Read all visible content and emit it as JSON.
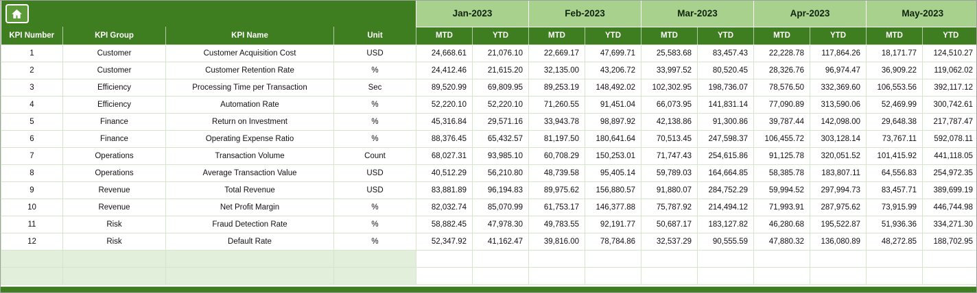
{
  "header": {
    "months": [
      "Jan-2023",
      "Feb-2023",
      "Mar-2023",
      "Apr-2023",
      "May-2023"
    ],
    "left_columns": [
      "KPI Number",
      "KPI Group",
      "KPI Name",
      "Unit"
    ],
    "sub_columns": [
      "MTD",
      "YTD"
    ]
  },
  "table": {
    "rows": [
      {
        "kpi_number": "1",
        "kpi_group": "Customer",
        "kpi_name": "Customer Acquisition Cost",
        "unit": "USD",
        "values": [
          "24,668.61",
          "21,076.10",
          "22,669.17",
          "47,699.71",
          "25,583.68",
          "83,457.43",
          "22,228.78",
          "117,864.26",
          "18,171.77",
          "124,510.27"
        ]
      },
      {
        "kpi_number": "2",
        "kpi_group": "Customer",
        "kpi_name": "Customer Retention Rate",
        "unit": "%",
        "values": [
          "24,412.46",
          "21,615.20",
          "32,135.00",
          "43,206.72",
          "33,997.52",
          "80,520.45",
          "28,326.76",
          "96,974.47",
          "36,909.22",
          "119,062.02"
        ]
      },
      {
        "kpi_number": "3",
        "kpi_group": "Efficiency",
        "kpi_name": "Processing Time per Transaction",
        "unit": "Sec",
        "values": [
          "89,520.99",
          "69,809.95",
          "89,253.19",
          "148,492.02",
          "102,302.95",
          "198,736.07",
          "78,576.50",
          "332,369.60",
          "106,553.56",
          "392,117.12"
        ]
      },
      {
        "kpi_number": "4",
        "kpi_group": "Efficiency",
        "kpi_name": "Automation Rate",
        "unit": "%",
        "values": [
          "52,220.10",
          "52,220.10",
          "71,260.55",
          "91,451.04",
          "66,073.95",
          "141,831.14",
          "77,090.89",
          "313,590.06",
          "52,469.99",
          "300,742.61"
        ]
      },
      {
        "kpi_number": "5",
        "kpi_group": "Finance",
        "kpi_name": "Return on Investment",
        "unit": "%",
        "values": [
          "45,316.84",
          "29,571.16",
          "33,943.78",
          "98,897.92",
          "42,138.86",
          "91,300.86",
          "39,787.44",
          "142,098.00",
          "29,648.38",
          "217,787.47"
        ]
      },
      {
        "kpi_number": "6",
        "kpi_group": "Finance",
        "kpi_name": "Operating Expense Ratio",
        "unit": "%",
        "values": [
          "88,376.45",
          "65,432.57",
          "81,197.50",
          "180,641.64",
          "70,513.45",
          "247,598.37",
          "106,455.72",
          "303,128.14",
          "73,767.11",
          "592,078.11"
        ]
      },
      {
        "kpi_number": "7",
        "kpi_group": "Operations",
        "kpi_name": "Transaction Volume",
        "unit": "Count",
        "values": [
          "68,027.31",
          "93,985.10",
          "60,708.29",
          "150,253.01",
          "71,747.43",
          "254,615.86",
          "91,125.78",
          "320,051.52",
          "101,415.92",
          "441,118.05"
        ]
      },
      {
        "kpi_number": "8",
        "kpi_group": "Operations",
        "kpi_name": "Average Transaction Value",
        "unit": "USD",
        "values": [
          "40,512.29",
          "56,210.80",
          "48,739.58",
          "95,405.14",
          "59,789.03",
          "164,664.85",
          "58,385.78",
          "183,807.11",
          "64,556.83",
          "254,972.35"
        ]
      },
      {
        "kpi_number": "9",
        "kpi_group": "Revenue",
        "kpi_name": "Total Revenue",
        "unit": "USD",
        "values": [
          "83,881.89",
          "96,194.83",
          "89,975.62",
          "156,880.57",
          "91,880.07",
          "284,752.29",
          "59,994.52",
          "297,994.73",
          "83,457.71",
          "389,699.19"
        ]
      },
      {
        "kpi_number": "10",
        "kpi_group": "Revenue",
        "kpi_name": "Net Profit Margin",
        "unit": "%",
        "values": [
          "82,032.74",
          "85,070.99",
          "61,753.17",
          "146,377.88",
          "75,787.92",
          "214,494.12",
          "71,993.91",
          "287,975.62",
          "73,915.99",
          "446,744.98"
        ]
      },
      {
        "kpi_number": "11",
        "kpi_group": "Risk",
        "kpi_name": "Fraud Detection Rate",
        "unit": "%",
        "values": [
          "58,882.45",
          "47,978.30",
          "49,783.55",
          "92,191.77",
          "50,687.17",
          "183,127.82",
          "46,280.68",
          "195,522.87",
          "51,936.36",
          "334,271.30"
        ]
      },
      {
        "kpi_number": "12",
        "kpi_group": "Risk",
        "kpi_name": "Default Rate",
        "unit": "%",
        "values": [
          "52,347.92",
          "41,162.47",
          "39,816.00",
          "78,784.86",
          "32,537.29",
          "90,555.59",
          "47,880.32",
          "136,080.89",
          "48,272.85",
          "188,702.95"
        ]
      }
    ],
    "empty_rows": 2
  },
  "colors": {
    "header_dark_green": "#3e7d20",
    "month_light_green": "#a9d18e",
    "empty_row_tint": "#e2efda",
    "grid_line": "#d5e4ca"
  }
}
